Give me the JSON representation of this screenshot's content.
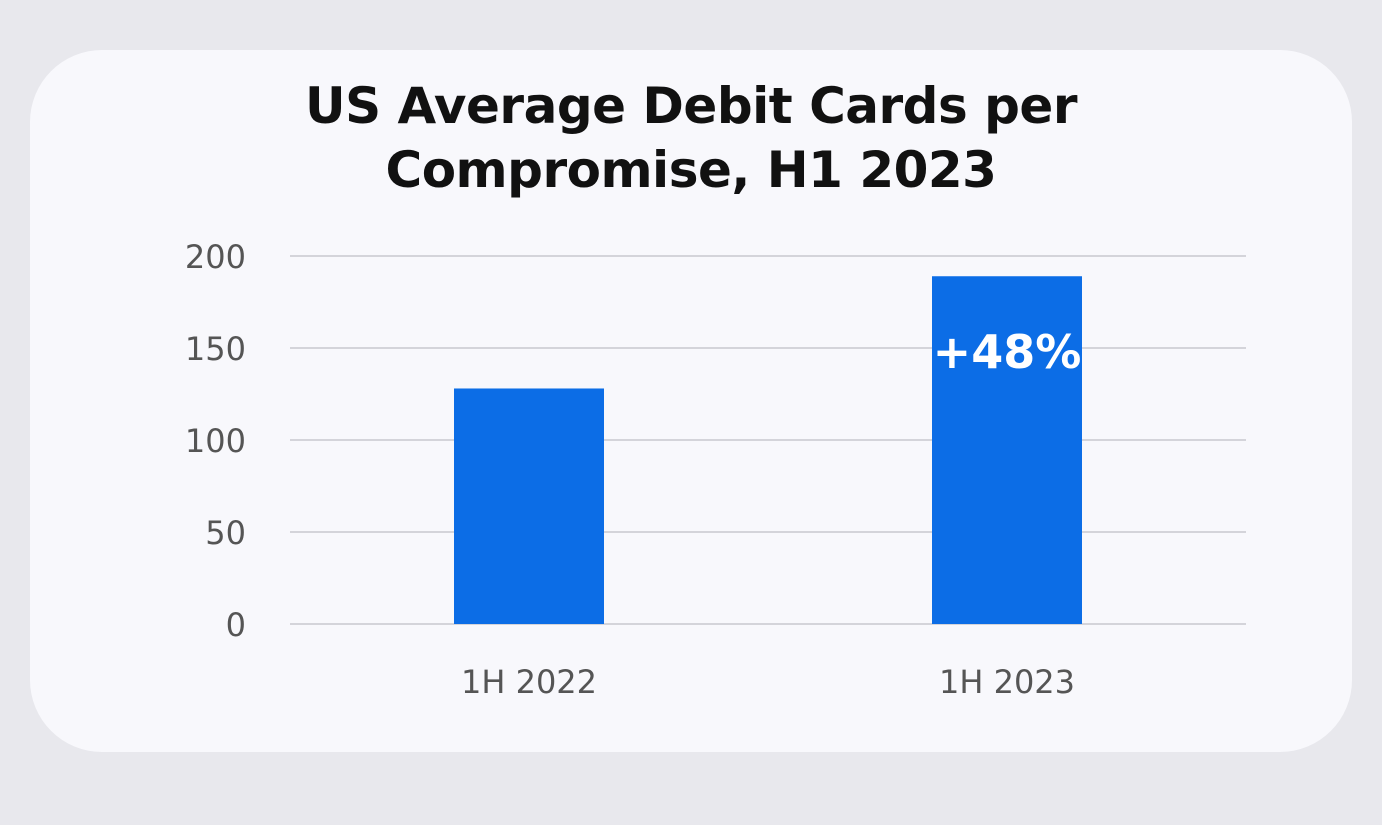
{
  "chart_data": {
    "type": "bar",
    "title": "US Average Debit Cards per Compromise, H1 2023",
    "title_lines": [
      "US Average Debit Cards per",
      "Compromise, H1 2023"
    ],
    "categories": [
      "1H 2022",
      "1H 2023"
    ],
    "values": [
      128,
      189
    ],
    "annotations": [
      {
        "category": "1H 2023",
        "text": "+48%"
      }
    ],
    "xlabel": "",
    "ylabel": "",
    "ylim": [
      0,
      200
    ],
    "yticks": [
      0,
      50,
      100,
      150,
      200
    ],
    "grid": true,
    "legend": "none",
    "colors": {
      "bar": "#0c6de6",
      "grid": "#d4d4da",
      "background": "#e8e8ed",
      "card": "#f8f8fc"
    }
  }
}
